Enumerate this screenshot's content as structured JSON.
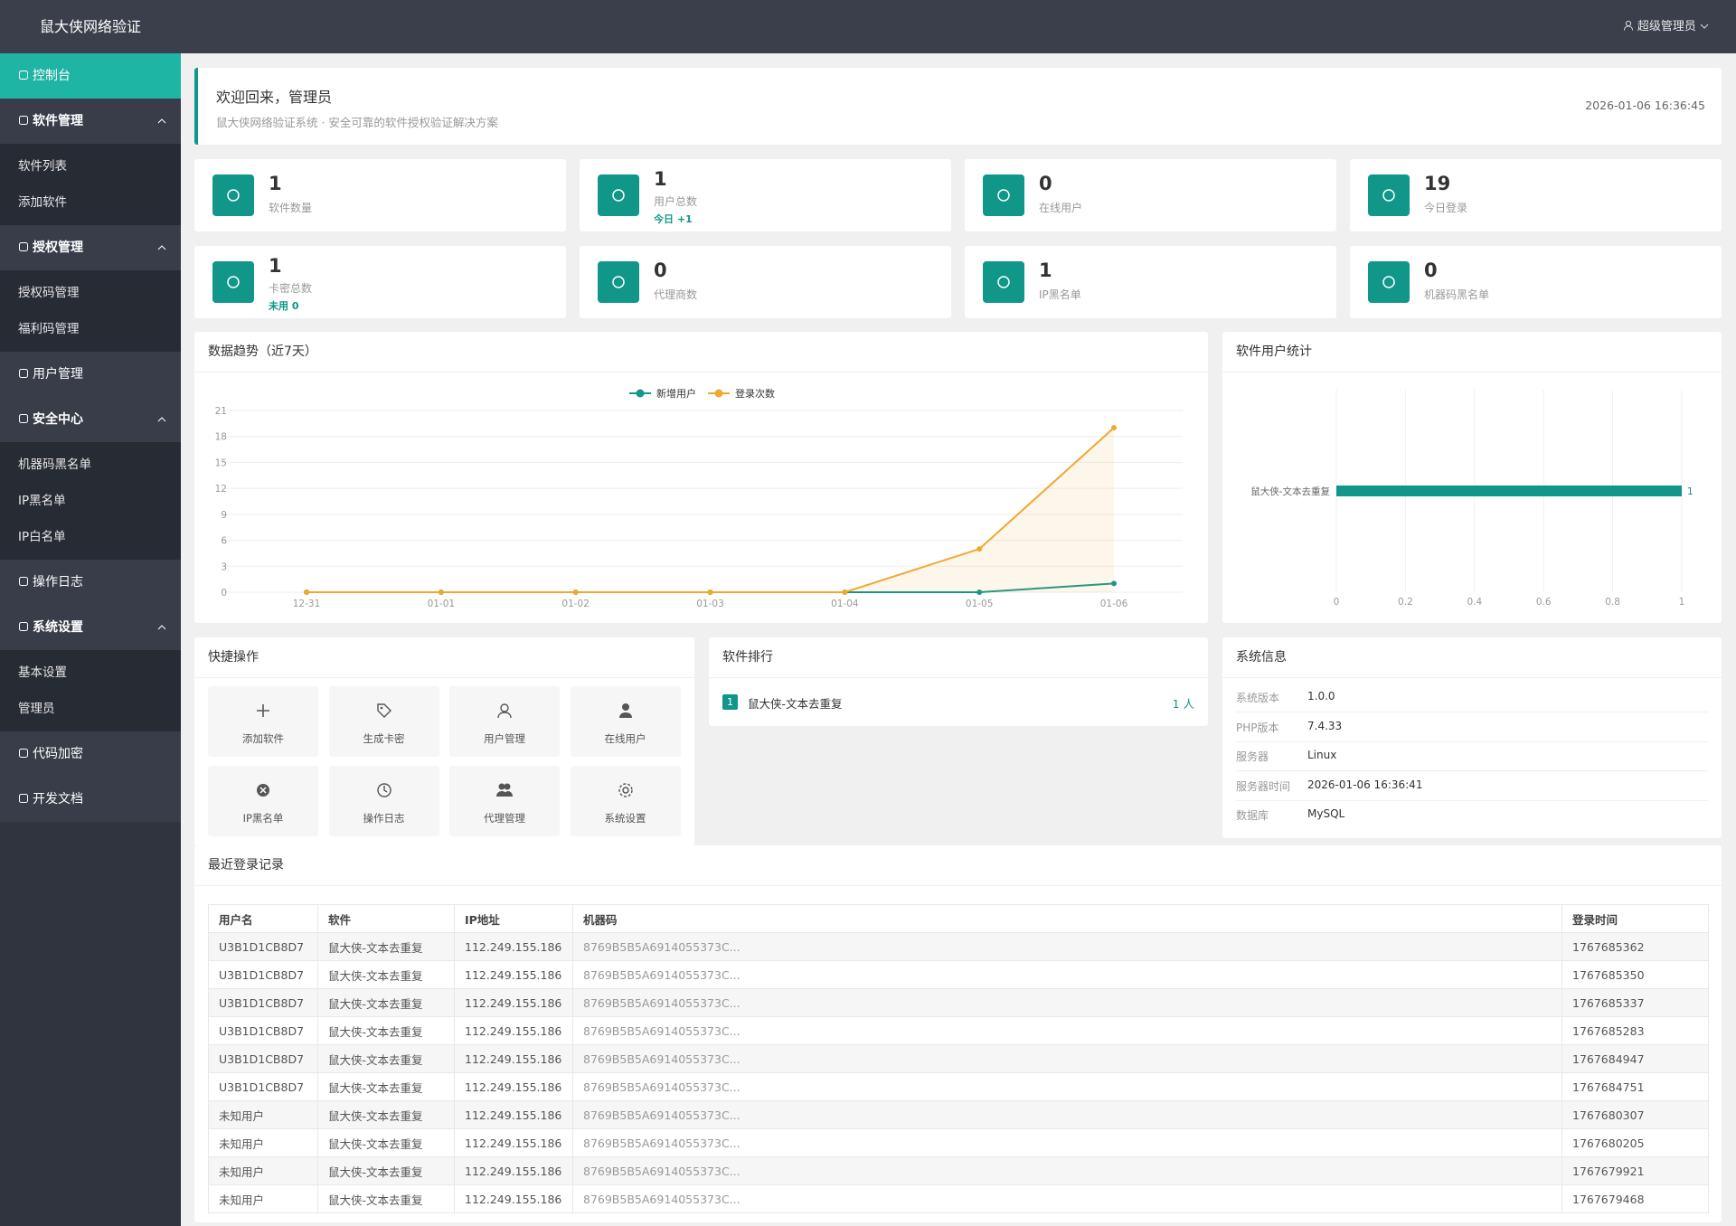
{
  "header": {
    "brand": "鼠大侠网络验证",
    "user": "超级管理员"
  },
  "menu": [
    {
      "label": "控制台",
      "active": true
    },
    {
      "label": "软件管理",
      "children": [
        "软件列表",
        "添加软件"
      ]
    },
    {
      "label": "授权管理",
      "children": [
        "授权码管理",
        "福利码管理"
      ]
    },
    {
      "label": "用户管理"
    },
    {
      "label": "安全中心",
      "children": [
        "机器码黑名单",
        "IP黑名单",
        "IP白名单"
      ]
    },
    {
      "label": "操作日志"
    },
    {
      "label": "系统设置",
      "children": [
        "基本设置",
        "管理员"
      ]
    },
    {
      "label": "代码加密"
    },
    {
      "label": "开发文档"
    }
  ],
  "welcome": {
    "title": "欢迎回来，管理员",
    "subtitle": "鼠大侠网络验证系统 · 安全可靠的软件授权验证解决方案",
    "datetime": "2026-01-06 16:36:45"
  },
  "stats": [
    {
      "value": 1,
      "label": "软件数量"
    },
    {
      "value": 1,
      "label": "用户总数",
      "note": "今日 +1"
    },
    {
      "value": 0,
      "label": "在线用户"
    },
    {
      "value": 19,
      "label": "今日登录"
    },
    {
      "value": 1,
      "label": "卡密总数",
      "note": "未用 0"
    },
    {
      "value": 0,
      "label": "代理商数"
    },
    {
      "value": 1,
      "label": "IP黑名单"
    },
    {
      "value": 0,
      "label": "机器码黑名单"
    }
  ],
  "trend_chart": {
    "type": "line",
    "title": "数据趋势（近7天）",
    "categories": [
      "12-31",
      "01-01",
      "01-02",
      "01-03",
      "01-04",
      "01-05",
      "01-06"
    ],
    "series": [
      {
        "name": "新增用户",
        "color": "#16968a",
        "values": [
          0,
          0,
          0,
          0,
          0,
          0,
          1
        ]
      },
      {
        "name": "登录次数",
        "color": "#f0a830",
        "values": [
          0,
          0,
          0,
          0,
          0,
          5,
          19
        ]
      }
    ],
    "ylim": [
      0,
      21
    ],
    "yticks": [
      0,
      3,
      6,
      9,
      12,
      15,
      18,
      21
    ],
    "grid": true
  },
  "software_chart": {
    "type": "bar",
    "title": "软件用户统计",
    "categories": [
      "鼠大侠-文本去重复"
    ],
    "values": [
      1
    ],
    "color": "#11968a",
    "xlim": [
      0,
      1
    ],
    "xticks": [
      0,
      0.2,
      0.4,
      0.6,
      0.8,
      1
    ],
    "grid": true
  },
  "quick_actions": {
    "title": "快捷操作",
    "items": [
      "添加软件",
      "生成卡密",
      "用户管理",
      "在线用户",
      "IP黑名单",
      "操作日志",
      "代理管理",
      "系统设置"
    ]
  },
  "ranking": {
    "title": "软件排行",
    "items": [
      {
        "rank": 1,
        "name": "鼠大侠-文本去重复",
        "count": "1 人"
      }
    ]
  },
  "system_info": {
    "title": "系统信息",
    "rows": [
      [
        "系统版本",
        "1.0.0"
      ],
      [
        "PHP版本",
        "7.4.33"
      ],
      [
        "服务器",
        "Linux"
      ],
      [
        "服务器时间",
        "2026-01-06 16:36:41"
      ],
      [
        "数据库",
        "MySQL"
      ]
    ]
  },
  "recent_logins": {
    "title": "最近登录记录",
    "columns": [
      "用户名",
      "软件",
      "IP地址",
      "机器码",
      "登录时间"
    ],
    "rows": [
      [
        "U3B1D1CB8D7",
        "鼠大侠-文本去重复",
        "112.249.155.186",
        "8769B5B5A6914055373C...",
        1767685362
      ],
      [
        "U3B1D1CB8D7",
        "鼠大侠-文本去重复",
        "112.249.155.186",
        "8769B5B5A6914055373C...",
        1767685350
      ],
      [
        "U3B1D1CB8D7",
        "鼠大侠-文本去重复",
        "112.249.155.186",
        "8769B5B5A6914055373C...",
        1767685337
      ],
      [
        "U3B1D1CB8D7",
        "鼠大侠-文本去重复",
        "112.249.155.186",
        "8769B5B5A6914055373C...",
        1767685283
      ],
      [
        "U3B1D1CB8D7",
        "鼠大侠-文本去重复",
        "112.249.155.186",
        "8769B5B5A6914055373C...",
        1767684947
      ],
      [
        "U3B1D1CB8D7",
        "鼠大侠-文本去重复",
        "112.249.155.186",
        "8769B5B5A6914055373C...",
        1767684751
      ],
      [
        "未知用户",
        "鼠大侠-文本去重复",
        "112.249.155.186",
        "8769B5B5A6914055373C...",
        1767680307
      ],
      [
        "未知用户",
        "鼠大侠-文本去重复",
        "112.249.155.186",
        "8769B5B5A6914055373C...",
        1767680205
      ],
      [
        "未知用户",
        "鼠大侠-文本去重复",
        "112.249.155.186",
        "8769B5B5A6914055373C...",
        1767679921
      ],
      [
        "未知用户",
        "鼠大侠-文本去重复",
        "112.249.155.186",
        "8769B5B5A6914055373C...",
        1767679468
      ]
    ]
  }
}
